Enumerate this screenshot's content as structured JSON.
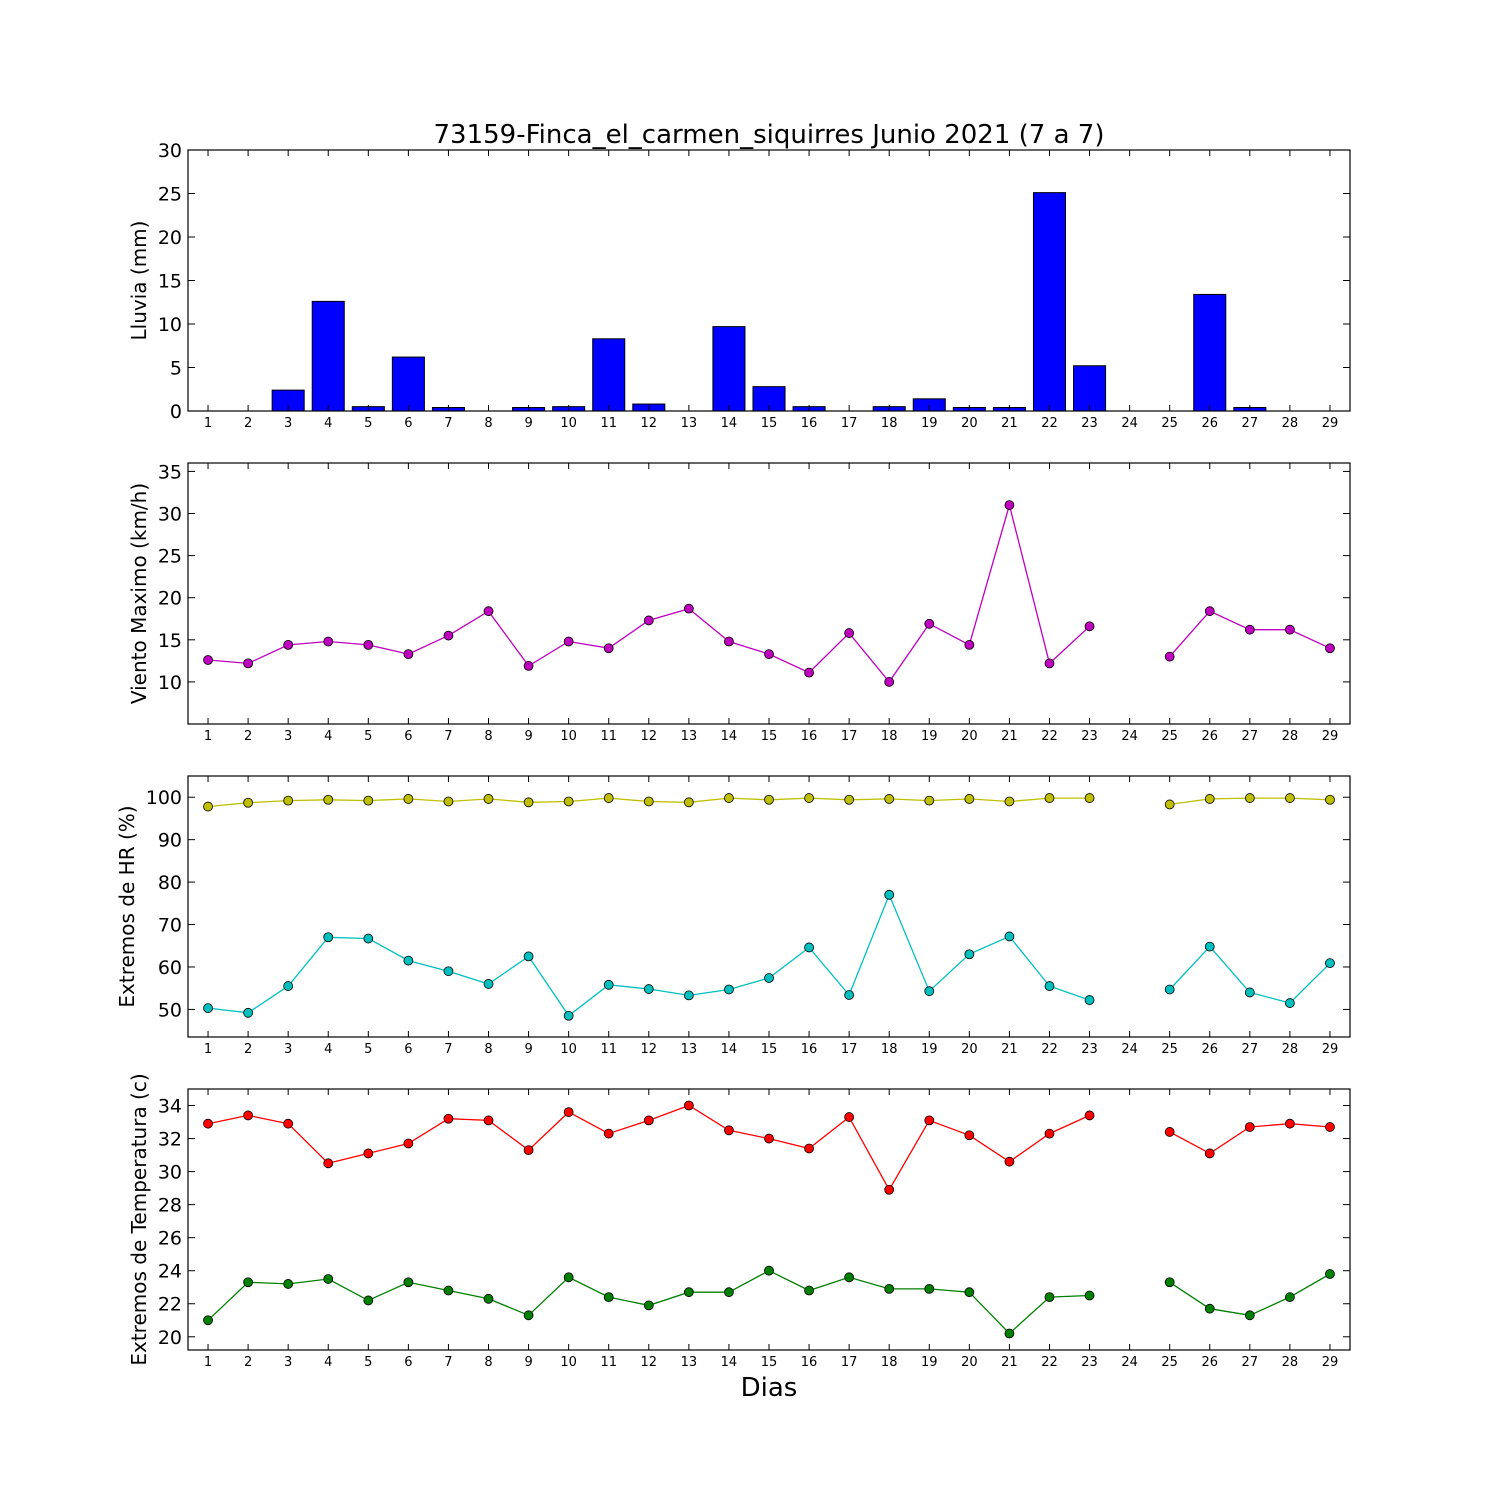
{
  "title": "73159-Finca_el_carmen_siquirres Junio 2021  (7 a 7)",
  "xlabel": "Dias",
  "chart_data": [
    {
      "type": "bar",
      "ylabel": "Lluvia (mm)",
      "ylim": [
        0,
        30
      ],
      "yticks": [
        0,
        5,
        10,
        15,
        20,
        25,
        30
      ],
      "categories": [
        1,
        2,
        3,
        4,
        5,
        6,
        7,
        8,
        9,
        10,
        11,
        12,
        13,
        14,
        15,
        16,
        17,
        18,
        19,
        20,
        21,
        22,
        23,
        24,
        25,
        26,
        27,
        28,
        29
      ],
      "series": [
        {
          "color": "#0000ff",
          "values": [
            0,
            0,
            2.4,
            12.6,
            0.5,
            6.2,
            0.4,
            0,
            0.4,
            0.5,
            8.3,
            0.8,
            0,
            9.7,
            2.8,
            0.5,
            0,
            0.5,
            1.4,
            0.4,
            0.4,
            25.1,
            5.2,
            0,
            0,
            13.4,
            0.4,
            0,
            0
          ]
        }
      ]
    },
    {
      "type": "line",
      "ylabel": "Viento Maximo (km/h)",
      "ylim": [
        5,
        36
      ],
      "yticks": [
        10,
        15,
        20,
        25,
        30,
        35
      ],
      "categories": [
        1,
        2,
        3,
        4,
        5,
        6,
        7,
        8,
        9,
        10,
        11,
        12,
        13,
        14,
        15,
        16,
        17,
        18,
        19,
        20,
        21,
        22,
        23,
        24,
        25,
        26,
        27,
        28,
        29
      ],
      "series": [
        {
          "color": "#bf00bf",
          "values": [
            12.6,
            12.2,
            14.4,
            14.8,
            14.4,
            13.3,
            15.5,
            18.4,
            11.9,
            14.8,
            14.0,
            17.3,
            18.7,
            14.8,
            13.3,
            11.1,
            15.8,
            10.0,
            16.9,
            14.4,
            31.0,
            12.2,
            16.6,
            null,
            13.0,
            18.4,
            16.2,
            16.2,
            14.0
          ]
        }
      ]
    },
    {
      "type": "line",
      "ylabel": "Extremos de HR (%)",
      "ylim": [
        43.5,
        105
      ],
      "yticks": [
        50,
        60,
        70,
        80,
        90,
        100
      ],
      "categories": [
        1,
        2,
        3,
        4,
        5,
        6,
        7,
        8,
        9,
        10,
        11,
        12,
        13,
        14,
        15,
        16,
        17,
        18,
        19,
        20,
        21,
        22,
        23,
        24,
        25,
        26,
        27,
        28,
        29
      ],
      "series": [
        {
          "color": "#bfbf00",
          "values": [
            97.8,
            98.7,
            99.2,
            99.4,
            99.2,
            99.6,
            99.0,
            99.6,
            98.8,
            99.0,
            99.8,
            99.0,
            98.8,
            99.8,
            99.4,
            99.8,
            99.4,
            99.6,
            99.2,
            99.6,
            99.0,
            99.8,
            99.8,
            null,
            98.3,
            99.6,
            99.8,
            99.8,
            99.4
          ]
        },
        {
          "color": "#00bfbf",
          "values": [
            50.3,
            49.2,
            55.5,
            67.0,
            66.7,
            61.5,
            59.0,
            56.0,
            62.5,
            48.5,
            55.8,
            54.8,
            53.3,
            54.7,
            57.4,
            64.6,
            53.4,
            77.0,
            54.3,
            63.0,
            67.2,
            55.5,
            52.2,
            null,
            54.7,
            64.8,
            54.0,
            51.5,
            60.9
          ]
        }
      ]
    },
    {
      "type": "line",
      "ylabel": "Extremos de Temperatura (c)",
      "ylim": [
        19.2,
        35
      ],
      "yticks": [
        20,
        22,
        24,
        26,
        28,
        30,
        32,
        34
      ],
      "categories": [
        1,
        2,
        3,
        4,
        5,
        6,
        7,
        8,
        9,
        10,
        11,
        12,
        13,
        14,
        15,
        16,
        17,
        18,
        19,
        20,
        21,
        22,
        23,
        24,
        25,
        26,
        27,
        28,
        29
      ],
      "series": [
        {
          "color": "#ff0000",
          "values": [
            32.9,
            33.4,
            32.9,
            30.5,
            31.1,
            31.7,
            33.2,
            33.1,
            31.3,
            33.6,
            32.3,
            33.1,
            34.0,
            32.5,
            32.0,
            31.4,
            33.3,
            28.9,
            33.1,
            32.2,
            30.6,
            32.3,
            33.4,
            null,
            32.4,
            31.1,
            32.7,
            32.9,
            32.7
          ]
        },
        {
          "color": "#008000",
          "values": [
            21.0,
            23.3,
            23.2,
            23.5,
            22.2,
            23.3,
            22.8,
            22.3,
            21.3,
            23.6,
            22.4,
            21.9,
            22.7,
            22.7,
            24.0,
            22.8,
            23.6,
            22.9,
            22.9,
            22.7,
            20.2,
            22.4,
            22.5,
            null,
            23.3,
            21.7,
            21.3,
            22.4,
            23.8
          ]
        }
      ]
    }
  ]
}
